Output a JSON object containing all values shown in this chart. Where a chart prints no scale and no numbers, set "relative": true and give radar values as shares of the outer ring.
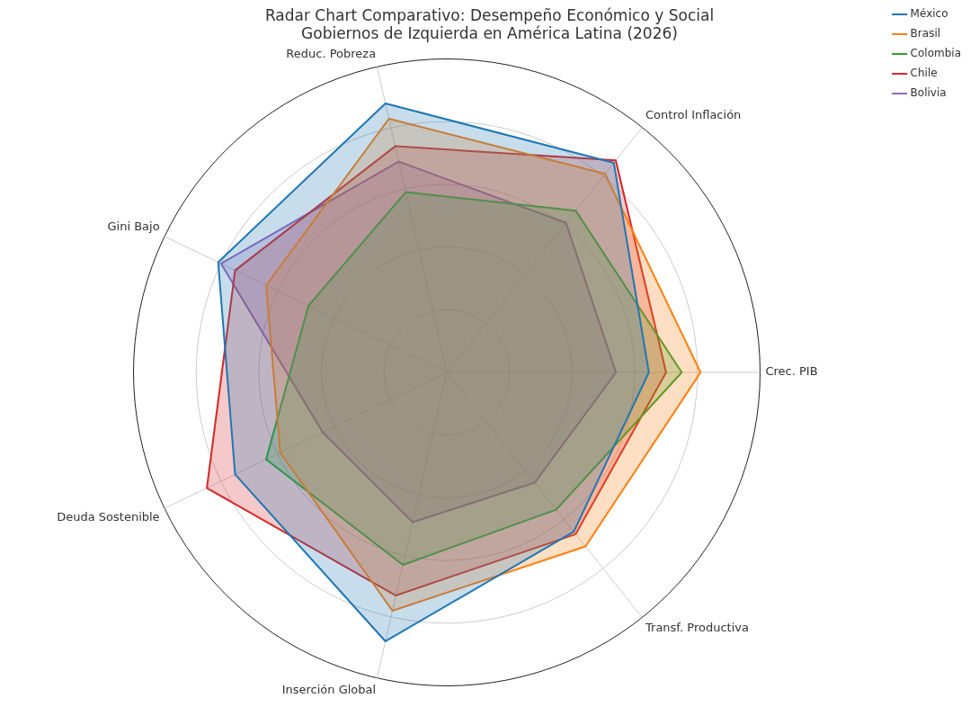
{
  "chart_data": {
    "type": "radar",
    "title": "Radar Chart Comparativo: Desempeño Económico y Social\nGobiernos de Izquierda en América Latina (2026)",
    "relative": true,
    "grid": true,
    "legend": "top right",
    "marker": "none",
    "categories": [
      "Reduc. Pobreza",
      "Control Inflación",
      "Crec. PIB",
      "Transf. Productiva",
      "Inserción Global",
      "Deuda Sostenible",
      "Gini Bajo"
    ],
    "series": [
      {
        "name": "México",
        "color": "#1f77b4",
        "values": [
          0.88,
          0.855,
          0.645,
          0.65,
          0.88,
          0.75,
          0.81
        ]
      },
      {
        "name": "Brasil",
        "color": "#ff7f0e",
        "values": [
          0.83,
          0.81,
          0.81,
          0.71,
          0.78,
          0.59,
          0.64
        ]
      },
      {
        "name": "Colombia",
        "color": "#2ca02c",
        "values": [
          0.59,
          0.66,
          0.75,
          0.56,
          0.63,
          0.64,
          0.49
        ]
      },
      {
        "name": "Chile",
        "color": "#d62728",
        "values": [
          0.74,
          0.865,
          0.7,
          0.66,
          0.73,
          0.85,
          0.75
        ]
      },
      {
        "name": "Bolivia",
        "color": "#9467bd",
        "values": [
          0.69,
          0.61,
          0.54,
          0.45,
          0.49,
          0.44,
          0.8
        ]
      }
    ]
  }
}
